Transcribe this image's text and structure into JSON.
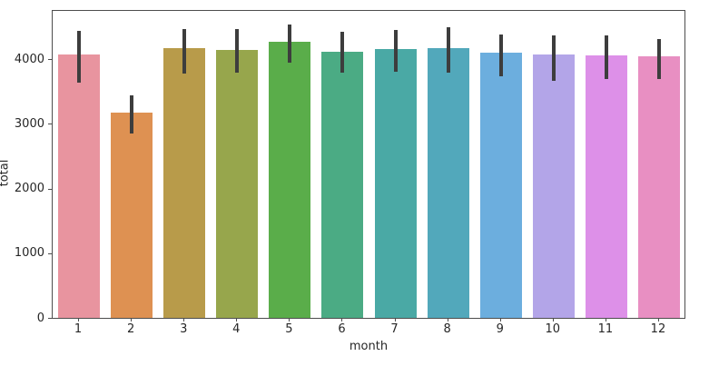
{
  "chart_data": {
    "type": "bar",
    "title": "",
    "xlabel": "month",
    "ylabel": "total",
    "categories": [
      "1",
      "2",
      "3",
      "4",
      "5",
      "6",
      "7",
      "8",
      "9",
      "10",
      "11",
      "12"
    ],
    "values": [
      4070,
      3170,
      4170,
      4140,
      4270,
      4110,
      4160,
      4170,
      4100,
      4075,
      4060,
      4045
    ],
    "error_low": [
      3650,
      2870,
      3790,
      3800,
      3955,
      3800,
      3825,
      3810,
      3755,
      3685,
      3700,
      3700
    ],
    "error_high": [
      4445,
      3460,
      4485,
      4485,
      4550,
      4435,
      4465,
      4505,
      4390,
      4375,
      4375,
      4325
    ],
    "bar_colors": [
      "#e8949f",
      "#de9152",
      "#b89b4a",
      "#97a64c",
      "#5aad4a",
      "#4bab84",
      "#4aa9a5",
      "#52a8bb",
      "#6caede",
      "#b3a5e8",
      "#dd90e8",
      "#e88fc2"
    ],
    "error_bar_color": "#3d3d3d",
    "ylim": [
      0,
      4760
    ],
    "yticks": [
      0,
      1000,
      2000,
      3000,
      4000
    ],
    "grid": false,
    "legend_position": "none",
    "axis_color": "#4d4d4d",
    "tick_text_color": "#262626",
    "background": "#ffffff"
  }
}
